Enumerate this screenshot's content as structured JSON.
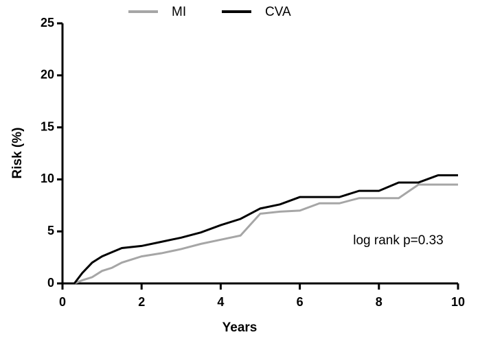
{
  "chart_data": {
    "type": "line",
    "x_label": "Years",
    "y_label": "Risk (%)",
    "annotation": "log rank p=0.33",
    "x": [
      0,
      0.3,
      0.5,
      0.75,
      1,
      1.25,
      1.5,
      2,
      2.5,
      3,
      3.5,
      4,
      4.5,
      5,
      5.5,
      6,
      6.5,
      7,
      7.5,
      8,
      8.5,
      9,
      9.5,
      10
    ],
    "series": [
      {
        "name": "MI",
        "color": "#a6a6a6",
        "values": [
          0,
          0,
          0.3,
          0.6,
          1.2,
          1.5,
          2.0,
          2.6,
          2.9,
          3.3,
          3.8,
          4.2,
          4.6,
          6.7,
          6.9,
          7.0,
          7.7,
          7.7,
          8.2,
          8.2,
          8.2,
          9.5,
          9.5,
          9.5
        ]
      },
      {
        "name": "CVA",
        "color": "#000000",
        "values": [
          0,
          0,
          1.0,
          2.0,
          2.6,
          3.0,
          3.4,
          3.6,
          4.0,
          4.4,
          4.9,
          5.6,
          6.2,
          7.2,
          7.6,
          8.3,
          8.3,
          8.3,
          8.9,
          8.9,
          9.7,
          9.7,
          10.4,
          10.4
        ]
      }
    ],
    "xlim": [
      0,
      10
    ],
    "xticks": [
      0,
      2,
      4,
      6,
      8,
      10
    ],
    "ylim": [
      0,
      25
    ],
    "yticks": [
      0,
      5,
      10,
      15,
      20,
      25
    ],
    "legend": "top"
  }
}
